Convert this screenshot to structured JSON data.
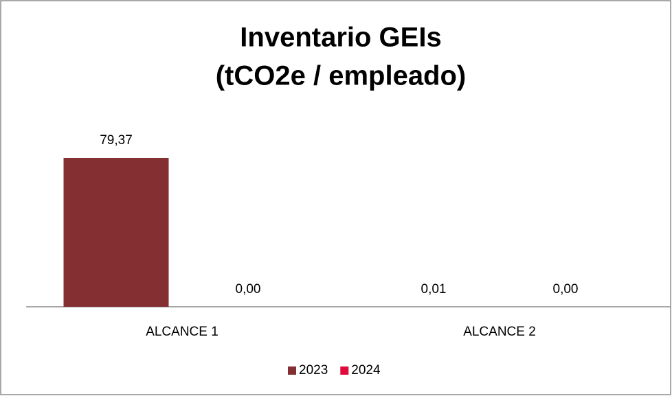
{
  "chart_data": {
    "type": "bar",
    "title": [
      "Inventario GEIs",
      "(tCO2e / empleado)"
    ],
    "categories": [
      "ALCANCE 1",
      "ALCANCE 2"
    ],
    "series": [
      {
        "name": "2023",
        "color": "#843033",
        "values": [
          79.37,
          0.01
        ],
        "value_labels": [
          "79,37",
          "0,01"
        ]
      },
      {
        "name": "2024",
        "color": "#e00b3c",
        "values": [
          0.0,
          0.0
        ],
        "value_labels": [
          "0,00",
          "0,00"
        ]
      }
    ],
    "legend": "bottom"
  }
}
